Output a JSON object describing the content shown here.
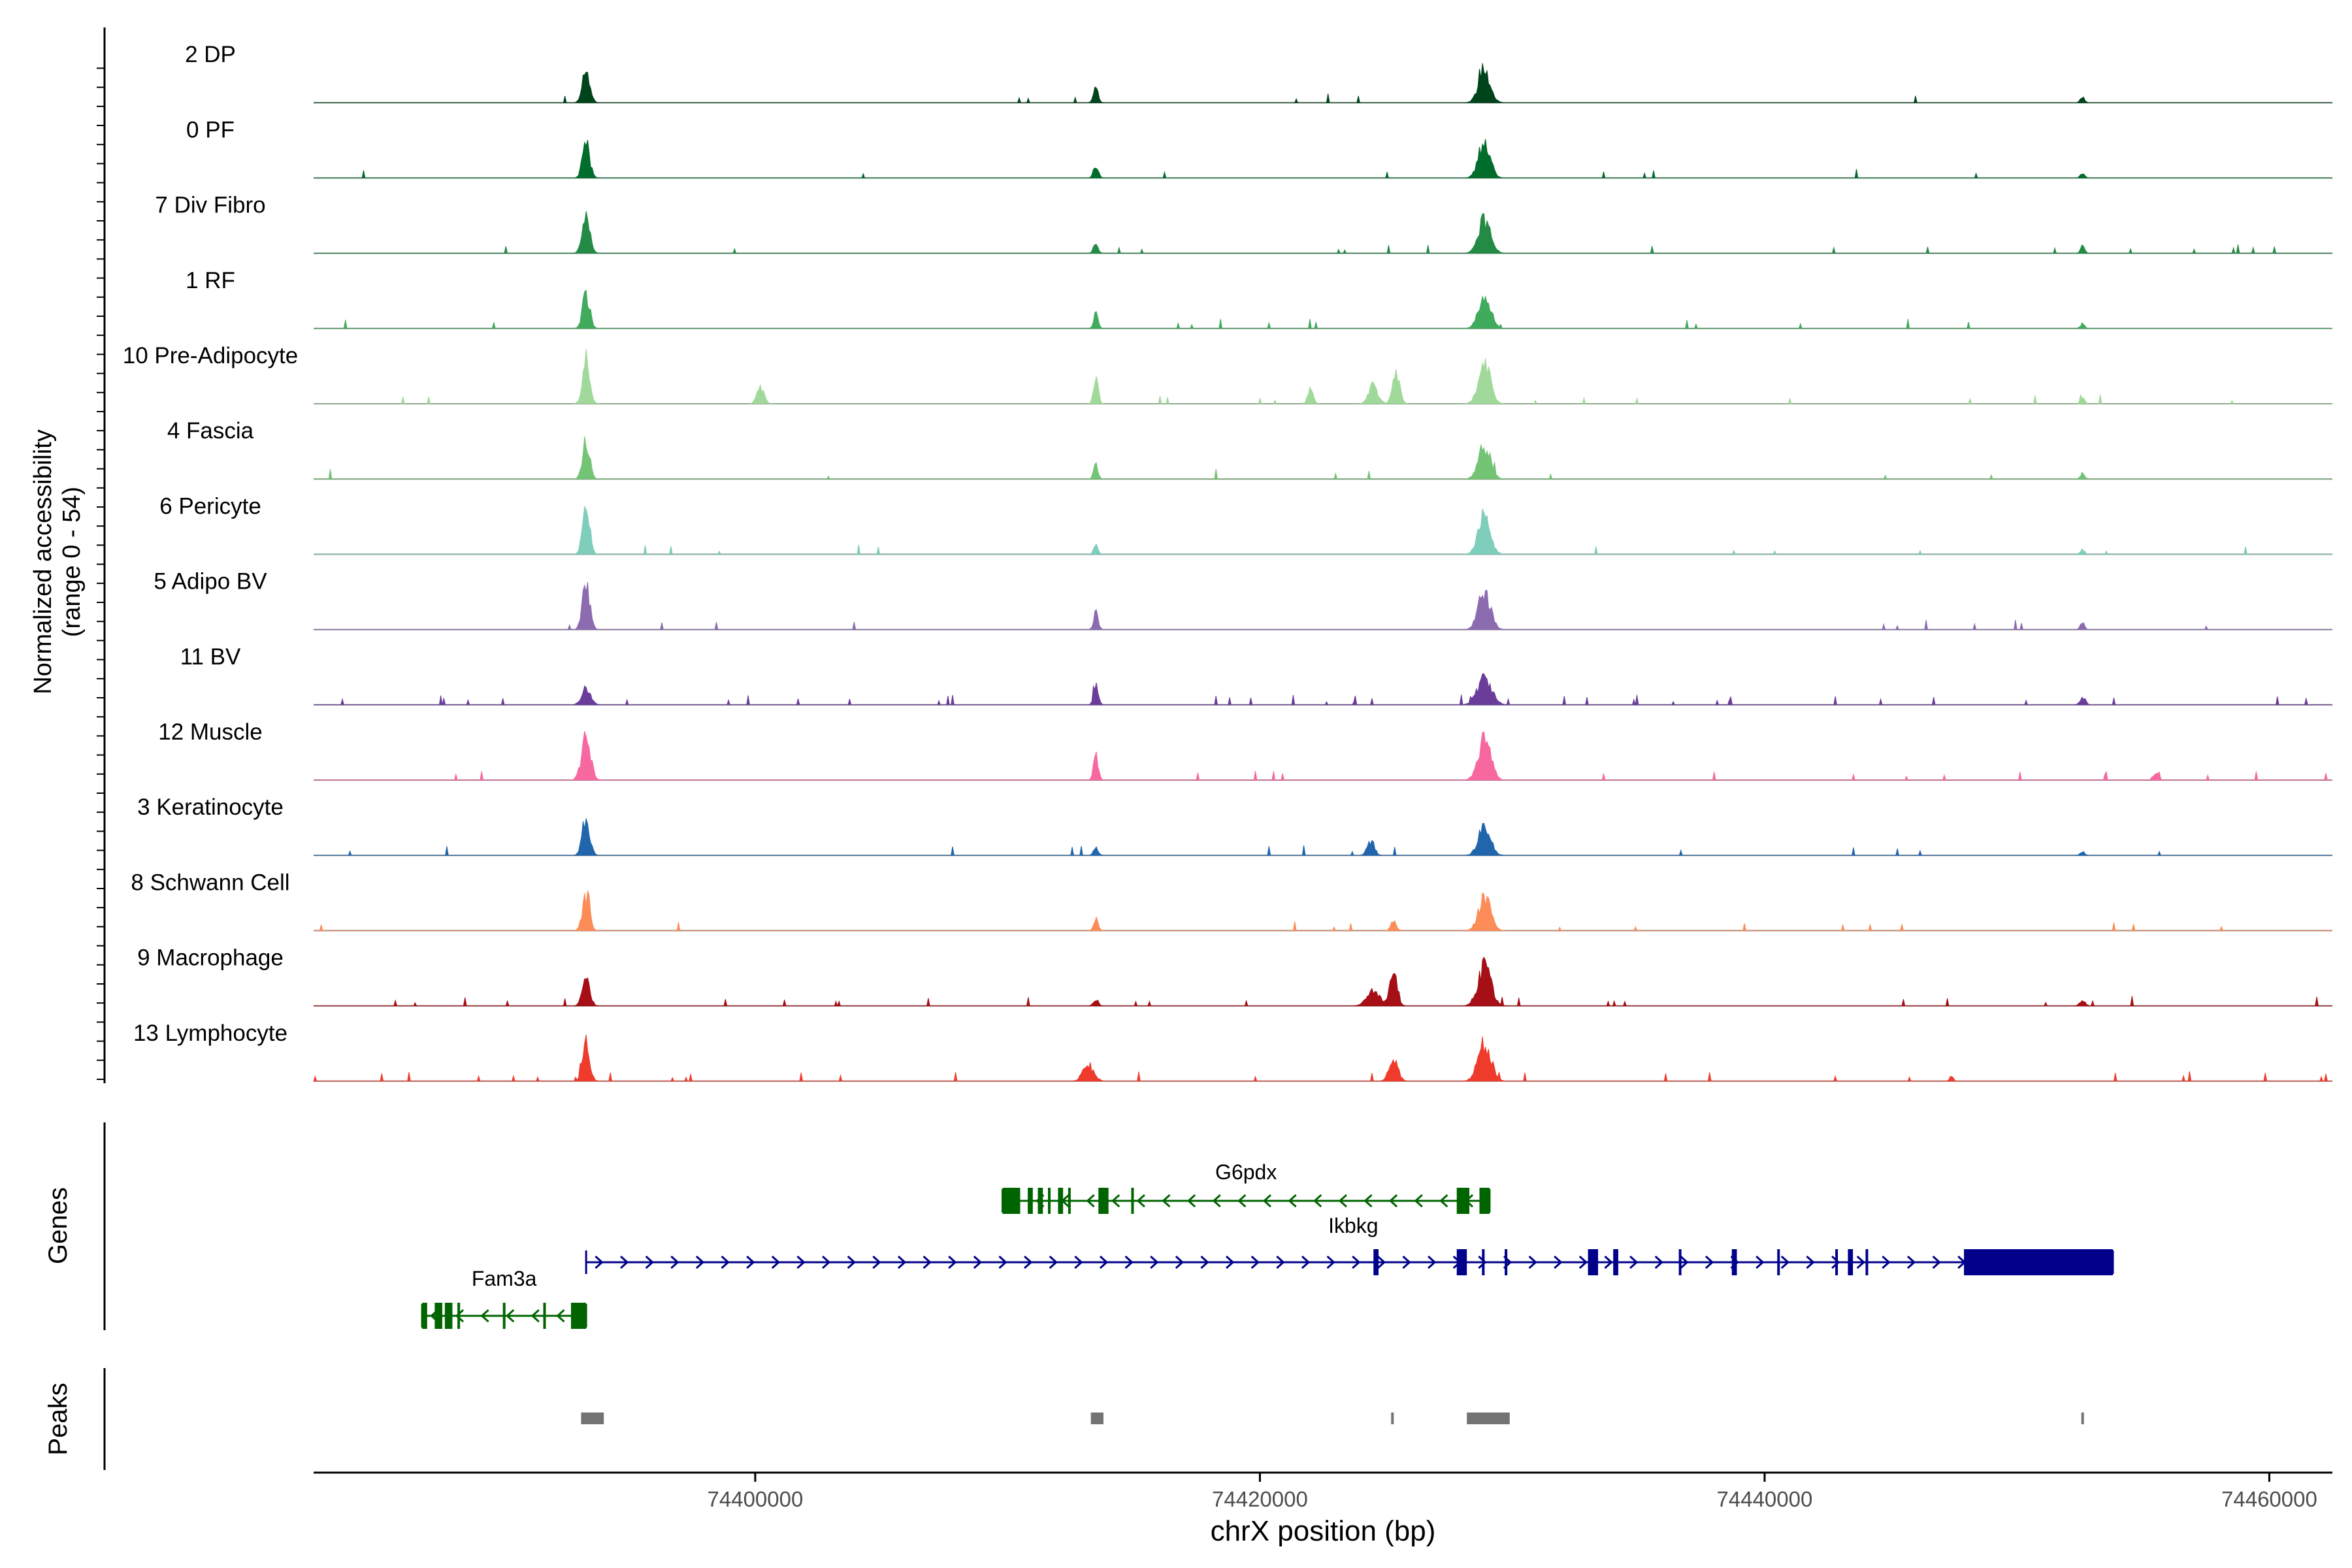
{
  "chart_data": {
    "type": "area",
    "title": "",
    "ylabel_line1": "Normalized accessibility",
    "ylabel_line2": "(range 0 - 54)",
    "ylim": [
      0,
      54
    ],
    "xlabel": "chrX position (bp)",
    "xlim": [
      74382500,
      74462500
    ],
    "xticks": [
      74400000,
      74420000,
      74440000,
      74460000
    ],
    "xtick_labels": [
      "74400000",
      "74420000",
      "74440000",
      "74460000"
    ],
    "panels": {
      "genes_label": "Genes",
      "peaks_label": "Peaks"
    },
    "tracks": [
      {
        "name": "2 DP",
        "color": "#00441b",
        "peaks": [
          [
            74393300,
            0.7,
            200
          ],
          [
            74413500,
            0.35,
            130
          ],
          [
            74428900,
            0.75,
            320
          ],
          [
            74452600,
            0.12,
            120
          ]
        ],
        "noise": 0.04
      },
      {
        "name": "0 PF",
        "color": "#006d2c",
        "peaks": [
          [
            74393300,
            0.75,
            200
          ],
          [
            74413500,
            0.3,
            130
          ],
          [
            74428900,
            0.82,
            320
          ],
          [
            74452600,
            0.1,
            120
          ]
        ],
        "noise": 0.04
      },
      {
        "name": "7 Div Fibro",
        "color": "#238b45",
        "peaks": [
          [
            74393300,
            1.0,
            200
          ],
          [
            74413500,
            0.2,
            130
          ],
          [
            74428900,
            0.72,
            340
          ],
          [
            74452600,
            0.15,
            120
          ]
        ],
        "noise": 0.08
      },
      {
        "name": "1 RF",
        "color": "#41ab5d",
        "peaks": [
          [
            74393300,
            0.75,
            200
          ],
          [
            74413500,
            0.3,
            130
          ],
          [
            74428900,
            0.75,
            330
          ],
          [
            74452600,
            0.1,
            120
          ]
        ],
        "noise": 0.05
      },
      {
        "name": "10 Pre-Adipocyte",
        "color": "#a1d99b",
        "peaks": [
          [
            74393300,
            0.95,
            200
          ],
          [
            74400200,
            0.35,
            200
          ],
          [
            74413500,
            0.55,
            130
          ],
          [
            74422000,
            0.3,
            150
          ],
          [
            74424500,
            0.4,
            250
          ],
          [
            74425400,
            0.65,
            200
          ],
          [
            74428900,
            0.9,
            330
          ],
          [
            74452600,
            0.12,
            120
          ]
        ],
        "noise": 0.1
      },
      {
        "name": "4 Fascia",
        "color": "#74c476",
        "peaks": [
          [
            74393300,
            0.8,
            200
          ],
          [
            74413500,
            0.3,
            130
          ],
          [
            74428900,
            0.7,
            330
          ],
          [
            74452600,
            0.12,
            120
          ]
        ],
        "noise": 0.04
      },
      {
        "name": "6 Pericyte",
        "color": "#7fcdbb",
        "peaks": [
          [
            74393300,
            0.95,
            200
          ],
          [
            74413500,
            0.18,
            130
          ],
          [
            74428900,
            0.85,
            330
          ],
          [
            74452600,
            0.1,
            120
          ]
        ],
        "noise": 0.04
      },
      {
        "name": "5 Adipo BV",
        "color": "#8c6bb1",
        "peaks": [
          [
            74393300,
            1.0,
            200
          ],
          [
            74413500,
            0.35,
            130
          ],
          [
            74428900,
            0.85,
            330
          ],
          [
            74452600,
            0.15,
            120
          ]
        ],
        "noise": 0.05
      },
      {
        "name": "11 BV",
        "color": "#6a3d9a",
        "peaks": [
          [
            74393300,
            0.35,
            250
          ],
          [
            74413500,
            0.45,
            130
          ],
          [
            74428900,
            0.55,
            400
          ],
          [
            74452600,
            0.18,
            150
          ]
        ],
        "noise": 0.15
      },
      {
        "name": "12 Muscle",
        "color": "#f768a1",
        "peaks": [
          [
            74393300,
            0.95,
            250
          ],
          [
            74413500,
            0.55,
            130
          ],
          [
            74428900,
            0.95,
            340
          ],
          [
            74455500,
            0.15,
            150
          ]
        ],
        "noise": 0.1
      },
      {
        "name": "3 Keratinocyte",
        "color": "#2166ac",
        "peaks": [
          [
            74393300,
            0.85,
            200
          ],
          [
            74413500,
            0.18,
            130
          ],
          [
            74424400,
            0.3,
            200
          ],
          [
            74428900,
            0.62,
            330
          ],
          [
            74452600,
            0.08,
            120
          ]
        ],
        "noise": 0.05
      },
      {
        "name": "8 Schwann Cell",
        "color": "#fc8d59",
        "peaks": [
          [
            74393300,
            0.75,
            200
          ],
          [
            74413500,
            0.25,
            130
          ],
          [
            74425300,
            0.2,
            150
          ],
          [
            74428900,
            0.72,
            330
          ]
        ],
        "noise": 0.05
      },
      {
        "name": "9 Macrophage",
        "color": "#a50f15",
        "peaks": [
          [
            74393300,
            0.65,
            200
          ],
          [
            74413500,
            0.15,
            130
          ],
          [
            74424500,
            0.35,
            350
          ],
          [
            74425300,
            0.8,
            200
          ],
          [
            74428900,
            0.85,
            360
          ],
          [
            74452600,
            0.12,
            150
          ]
        ],
        "noise": 0.1
      },
      {
        "name": "13 Lymphocyte",
        "color": "#ef3b2c",
        "peaks": [
          [
            74393300,
            0.85,
            200
          ],
          [
            74413200,
            0.35,
            300
          ],
          [
            74425300,
            0.45,
            250
          ],
          [
            74428900,
            0.85,
            360
          ],
          [
            74447400,
            0.12,
            100
          ]
        ],
        "noise": 0.12
      }
    ],
    "genes": [
      {
        "name": "G6pdx",
        "strand": "-",
        "color": "#006400",
        "start": 74409800,
        "end": 74429100,
        "exons": [
          [
            74409800,
            74410500
          ],
          [
            74410800,
            74411000
          ],
          [
            74411200,
            74411400
          ],
          [
            74411600,
            74411700
          ],
          [
            74412000,
            74412200
          ],
          [
            74412400,
            74412500
          ],
          [
            74413600,
            74414000
          ],
          [
            74414900,
            74415000
          ],
          [
            74427800,
            74428300
          ],
          [
            74428700,
            74429100
          ]
        ]
      },
      {
        "name": "Ikbkg",
        "strand": "+",
        "color": "#00008b",
        "start": 74393300,
        "end": 74453800,
        "exons": [
          [
            74424500,
            74424700
          ],
          [
            74427800,
            74428200
          ],
          [
            74428800,
            74428900
          ],
          [
            74429700,
            74429800
          ],
          [
            74433000,
            74433400
          ],
          [
            74434000,
            74434200
          ],
          [
            74436600,
            74436700
          ],
          [
            74438700,
            74438900
          ],
          [
            74440500,
            74440600
          ],
          [
            74442800,
            74442900
          ],
          [
            74443300,
            74443500
          ],
          [
            74444000,
            74444100
          ],
          [
            74447900,
            74453800
          ]
        ]
      },
      {
        "name": "Fam3a",
        "strand": "-",
        "color": "#006400",
        "start": 74386800,
        "end": 74393300,
        "exons": [
          [
            74386800,
            74387000
          ],
          [
            74387300,
            74387600
          ],
          [
            74387700,
            74388000
          ],
          [
            74388200,
            74388300
          ],
          [
            74390000,
            74390100
          ],
          [
            74391600,
            74391700
          ],
          [
            74392700,
            74393300
          ]
        ]
      }
    ],
    "peak_regions": [
      [
        74393100,
        74394000
      ],
      [
        74413300,
        74413800
      ],
      [
        74425200,
        74425300
      ],
      [
        74428200,
        74429900
      ],
      [
        74452550,
        74452650
      ]
    ]
  }
}
